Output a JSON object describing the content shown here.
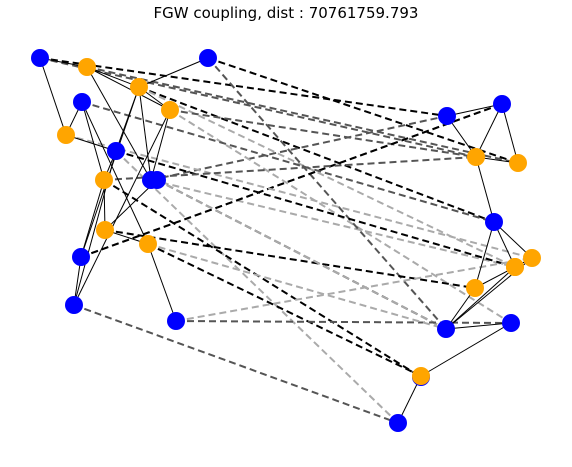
{
  "title": "FGW coupling, dist : 70761759.793",
  "colors": {
    "graph1_nodes": "#0000ff",
    "graph2_nodes": "#ffa500",
    "graph_edges": "#000000",
    "coupling_styles": [
      "#000000",
      "#555555",
      "#aaaaaa"
    ]
  },
  "graph1": {
    "nodes": [
      {
        "id": "b0"
      },
      {
        "id": "b1"
      },
      {
        "id": "b2"
      },
      {
        "id": "b3"
      },
      {
        "id": "b4"
      },
      {
        "id": "b5"
      },
      {
        "id": "b6"
      },
      {
        "id": "b7"
      },
      {
        "id": "b8"
      },
      {
        "id": "o0"
      },
      {
        "id": "o1"
      },
      {
        "id": "o2"
      },
      {
        "id": "o3"
      },
      {
        "id": "o4"
      },
      {
        "id": "o5"
      },
      {
        "id": "o6"
      }
    ],
    "edges": [
      [
        "b0",
        "o0"
      ],
      [
        "b0",
        "o3"
      ],
      [
        "o0",
        "o1"
      ],
      [
        "o0",
        "o2"
      ],
      [
        "o0",
        "b3"
      ],
      [
        "o1",
        "o2"
      ],
      [
        "o1",
        "b3"
      ],
      [
        "o1",
        "b6"
      ],
      [
        "b5",
        "o1"
      ],
      [
        "o2",
        "b7"
      ],
      [
        "o2",
        "b3"
      ],
      [
        "b1",
        "o3"
      ],
      [
        "b1",
        "o4"
      ],
      [
        "o3",
        "b2"
      ],
      [
        "b2",
        "o4"
      ],
      [
        "b2",
        "o1"
      ],
      [
        "b2",
        "b7"
      ],
      [
        "o4",
        "b6"
      ],
      [
        "o4",
        "o5"
      ],
      [
        "o5",
        "b4"
      ],
      [
        "o5",
        "o6"
      ],
      [
        "o6",
        "b8"
      ],
      [
        "b1",
        "o6"
      ],
      [
        "b6",
        "b7"
      ]
    ]
  },
  "graph2": {
    "nodes": [
      {
        "id": "B0"
      },
      {
        "id": "B1"
      },
      {
        "id": "B2"
      },
      {
        "id": "B3"
      },
      {
        "id": "B4"
      },
      {
        "id": "B5"
      },
      {
        "id": "B6"
      },
      {
        "id": "O0"
      },
      {
        "id": "O1"
      },
      {
        "id": "O2"
      },
      {
        "id": "O3"
      },
      {
        "id": "O4"
      },
      {
        "id": "O5"
      },
      {
        "id": "O6"
      }
    ],
    "edges": [
      [
        "B0",
        "B1"
      ],
      [
        "B0",
        "O0"
      ],
      [
        "B1",
        "O0"
      ],
      [
        "B1",
        "O1"
      ],
      [
        "O0",
        "O1"
      ],
      [
        "O0",
        "B2"
      ],
      [
        "B2",
        "O2"
      ],
      [
        "B2",
        "O3"
      ],
      [
        "O2",
        "O3"
      ],
      [
        "B2",
        "O4"
      ],
      [
        "O3",
        "O4"
      ],
      [
        "O2",
        "B3"
      ],
      [
        "O3",
        "B3"
      ],
      [
        "O4",
        "B3"
      ],
      [
        "B3",
        "B4"
      ],
      [
        "B4",
        "O5"
      ],
      [
        "O5",
        "B5"
      ]
    ]
  },
  "couplings": [
    {
      "from": "b0",
      "to": "B0",
      "style": 0
    },
    {
      "from": "b0",
      "to": "O0",
      "style": 1
    },
    {
      "from": "o0",
      "to": "O1",
      "style": 1
    },
    {
      "from": "o1",
      "to": "B2",
      "style": 0
    },
    {
      "from": "o1",
      "to": "O3",
      "style": 2
    },
    {
      "from": "b3",
      "to": "B0",
      "style": 1
    },
    {
      "from": "b3",
      "to": "O3",
      "style": 2
    },
    {
      "from": "o2",
      "to": "O0",
      "style": 1
    },
    {
      "from": "o2",
      "to": "B4",
      "style": 2
    },
    {
      "from": "b5",
      "to": "O1",
      "style": 0
    },
    {
      "from": "b5",
      "to": "B3",
      "style": 1
    },
    {
      "from": "b6",
      "to": "B1",
      "style": 1
    },
    {
      "from": "b6",
      "to": "B1",
      "style": 0
    },
    {
      "from": "o3",
      "to": "O2",
      "style": 2
    },
    {
      "from": "b2",
      "to": "O6",
      "style": 0
    },
    {
      "from": "b2",
      "to": "B5",
      "style": 2
    },
    {
      "from": "o4",
      "to": "O0",
      "style": 1
    },
    {
      "from": "o4",
      "to": "B6",
      "style": 0
    },
    {
      "from": "o5",
      "to": "O4",
      "style": 0
    },
    {
      "from": "o6",
      "to": "O5",
      "style": 0
    },
    {
      "from": "b1",
      "to": "B2",
      "style": 1
    },
    {
      "from": "b4",
      "to": "B3",
      "style": 0
    },
    {
      "from": "b4",
      "to": "B3",
      "style": 2
    },
    {
      "from": "b7",
      "to": "B5",
      "style": 1
    },
    {
      "from": "b8",
      "to": "B4",
      "style": 1
    },
    {
      "from": "b8",
      "to": "O2",
      "style": 2
    },
    {
      "from": "o6",
      "to": "B3",
      "style": 2
    }
  ]
}
